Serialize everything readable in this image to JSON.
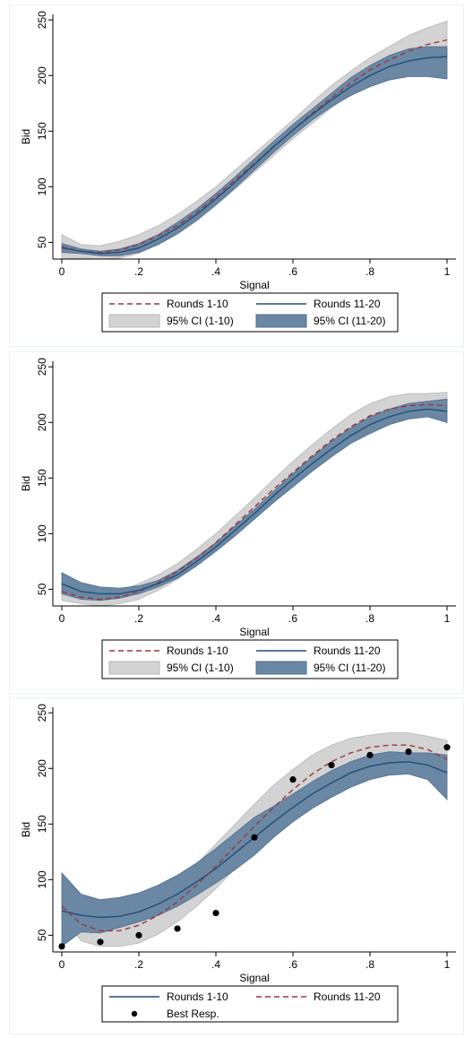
{
  "chart_data": [
    {
      "type": "line",
      "xlabel": "Signal",
      "ylabel": "Bid",
      "xlim": [
        0,
        1
      ],
      "ylim": [
        35,
        255
      ],
      "xticks": [
        0,
        0.2,
        0.4,
        0.6,
        0.8,
        1
      ],
      "xtick_labels": [
        "0",
        ".2",
        ".4",
        ".6",
        ".8",
        "1"
      ],
      "yticks": [
        50,
        100,
        150,
        200,
        250
      ],
      "ytick_labels": [
        "50",
        "100",
        "150",
        "200",
        "250"
      ],
      "grid": false,
      "legend_position": "bottom",
      "legend": [
        "Rounds 1-10",
        "Rounds 11-20",
        "95% CI (1-10)",
        "95% CI (11-20)"
      ],
      "x": [
        0,
        0.05,
        0.1,
        0.15,
        0.2,
        0.25,
        0.3,
        0.35,
        0.4,
        0.45,
        0.5,
        0.55,
        0.6,
        0.65,
        0.7,
        0.75,
        0.8,
        0.85,
        0.9,
        0.95,
        1
      ],
      "series": [
        {
          "name": "Rounds 1-10",
          "style": "dashed",
          "color": "#a0343a",
          "values": [
            46,
            42,
            41,
            43,
            48,
            56,
            65,
            77,
            91,
            106,
            121,
            136,
            151,
            166,
            180,
            193,
            205,
            214,
            222,
            228,
            232
          ],
          "ci_lower": [
            35,
            36,
            35,
            36,
            40,
            48,
            57,
            69,
            83,
            98,
            113,
            128,
            143,
            157,
            171,
            183,
            194,
            202,
            208,
            212,
            215
          ],
          "ci_upper": [
            57,
            48,
            47,
            51,
            57,
            65,
            75,
            87,
            100,
            115,
            130,
            145,
            160,
            176,
            191,
            204,
            216,
            226,
            236,
            243,
            249
          ]
        },
        {
          "name": "Rounds 11-20",
          "style": "solid",
          "color": "#1f4f76",
          "values": [
            45,
            42,
            40,
            41,
            45,
            53,
            63,
            75,
            89,
            104,
            120,
            136,
            151,
            165,
            178,
            190,
            200,
            208,
            213,
            216,
            217
          ],
          "ci_lower": [
            41,
            40,
            38,
            38,
            41,
            48,
            58,
            70,
            84,
            99,
            115,
            131,
            146,
            160,
            172,
            182,
            190,
            196,
            199,
            199,
            197
          ],
          "ci_upper": [
            49,
            44,
            42,
            44,
            49,
            57,
            68,
            80,
            94,
            109,
            125,
            141,
            156,
            170,
            184,
            198,
            209,
            218,
            224,
            226,
            226
          ]
        }
      ]
    },
    {
      "type": "line",
      "xlabel": "Signal",
      "ylabel": "Bid",
      "xlim": [
        0,
        1
      ],
      "ylim": [
        35,
        255
      ],
      "xticks": [
        0,
        0.2,
        0.4,
        0.6,
        0.8,
        1
      ],
      "xtick_labels": [
        "0",
        ".2",
        ".4",
        ".6",
        ".8",
        "1"
      ],
      "yticks": [
        50,
        100,
        150,
        200,
        250
      ],
      "ytick_labels": [
        "50",
        "100",
        "150",
        "200",
        "250"
      ],
      "grid": false,
      "legend_position": "bottom",
      "legend": [
        "Rounds 1-10",
        "Rounds 11-20",
        "95% CI (1-10)",
        "95% CI (11-20)"
      ],
      "x": [
        0,
        0.05,
        0.1,
        0.15,
        0.2,
        0.25,
        0.3,
        0.35,
        0.4,
        0.45,
        0.5,
        0.55,
        0.6,
        0.65,
        0.7,
        0.75,
        0.8,
        0.85,
        0.9,
        0.95,
        1
      ],
      "series": [
        {
          "name": "Rounds 1-10",
          "style": "dashed",
          "color": "#a0343a",
          "values": [
            48,
            43,
            41,
            43,
            48,
            56,
            66,
            78,
            92,
            108,
            124,
            140,
            155,
            170,
            184,
            196,
            206,
            212,
            215,
            216,
            215
          ],
          "ci_lower": [
            40,
            37,
            35,
            37,
            41,
            49,
            59,
            71,
            85,
            100,
            116,
            131,
            146,
            160,
            173,
            184,
            193,
            200,
            204,
            205,
            203
          ],
          "ci_upper": [
            56,
            50,
            47,
            49,
            55,
            63,
            73,
            86,
            100,
            116,
            132,
            149,
            165,
            180,
            194,
            207,
            217,
            223,
            226,
            226,
            227
          ]
        },
        {
          "name": "Rounds 11-20",
          "style": "solid",
          "color": "#1f4f76",
          "values": [
            55,
            48,
            46,
            46,
            49,
            55,
            63,
            75,
            88,
            103,
            118,
            134,
            149,
            163,
            176,
            188,
            198,
            205,
            210,
            212,
            210
          ],
          "ci_lower": [
            46,
            41,
            40,
            42,
            46,
            52,
            60,
            71,
            84,
            98,
            113,
            128,
            142,
            156,
            169,
            181,
            190,
            198,
            203,
            205,
            200
          ],
          "ci_upper": [
            65,
            56,
            52,
            51,
            53,
            58,
            67,
            79,
            92,
            107,
            122,
            138,
            154,
            169,
            183,
            195,
            205,
            212,
            217,
            219,
            221
          ]
        }
      ]
    },
    {
      "type": "line",
      "xlabel": "Signal",
      "ylabel": "Bid",
      "xlim": [
        0,
        1
      ],
      "ylim": [
        35,
        255
      ],
      "xticks": [
        0,
        0.2,
        0.4,
        0.6,
        0.8,
        1
      ],
      "xtick_labels": [
        "0",
        ".2",
        ".4",
        ".6",
        ".8",
        "1"
      ],
      "yticks": [
        50,
        100,
        150,
        200,
        250
      ],
      "ytick_labels": [
        "50",
        "100",
        "150",
        "200",
        "250"
      ],
      "grid": false,
      "legend_position": "bottom",
      "legend": [
        "Rounds 1-10",
        "Rounds 11-20",
        "Best Resp."
      ],
      "x": [
        0,
        0.05,
        0.1,
        0.15,
        0.2,
        0.25,
        0.3,
        0.35,
        0.4,
        0.45,
        0.5,
        0.55,
        0.6,
        0.65,
        0.7,
        0.75,
        0.8,
        0.85,
        0.9,
        0.95,
        1
      ],
      "series": [
        {
          "name": "Rounds 1-10",
          "style": "solid",
          "color": "#1f4f76",
          "values": [
            72,
            68,
            66,
            67,
            71,
            78,
            87,
            98,
            110,
            124,
            138,
            152,
            165,
            177,
            187,
            196,
            202,
            205,
            206,
            203,
            196
          ],
          "ci_lower": [
            40,
            53,
            52,
            57,
            62,
            68,
            76,
            86,
            97,
            109,
            122,
            138,
            152,
            164,
            174,
            183,
            190,
            194,
            195,
            190,
            172
          ],
          "ci_upper": [
            106,
            87,
            82,
            84,
            88,
            95,
            104,
            115,
            128,
            142,
            156,
            166,
            177,
            188,
            198,
            206,
            212,
            215,
            214,
            214,
            212
          ]
        },
        {
          "name": "Rounds 11-20",
          "style": "dashed",
          "color": "#a0343a",
          "values": [
            76,
            60,
            54,
            54,
            59,
            68,
            80,
            95,
            112,
            130,
            148,
            165,
            181,
            195,
            206,
            214,
            219,
            221,
            221,
            217,
            208
          ],
          "ci_lower": [
            66,
            45,
            40,
            40,
            43,
            51,
            62,
            76,
            92,
            110,
            128,
            146,
            163,
            178,
            191,
            199,
            205,
            208,
            210,
            206,
            186
          ],
          "ci_upper": [
            102,
            76,
            70,
            69,
            75,
            85,
            98,
            114,
            132,
            150,
            168,
            185,
            199,
            212,
            221,
            227,
            230,
            232,
            232,
            229,
            225
          ]
        },
        {
          "name": "Best Resp.",
          "style": "points",
          "color": "#000000",
          "points": [
            [
              0,
              40
            ],
            [
              0.1,
              44
            ],
            [
              0.2,
              50
            ],
            [
              0.3,
              56
            ],
            [
              0.4,
              70
            ],
            [
              0.5,
              138
            ],
            [
              0.6,
              190
            ],
            [
              0.7,
              203
            ],
            [
              0.8,
              212
            ],
            [
              0.9,
              215
            ],
            [
              1,
              219
            ]
          ]
        }
      ]
    }
  ]
}
